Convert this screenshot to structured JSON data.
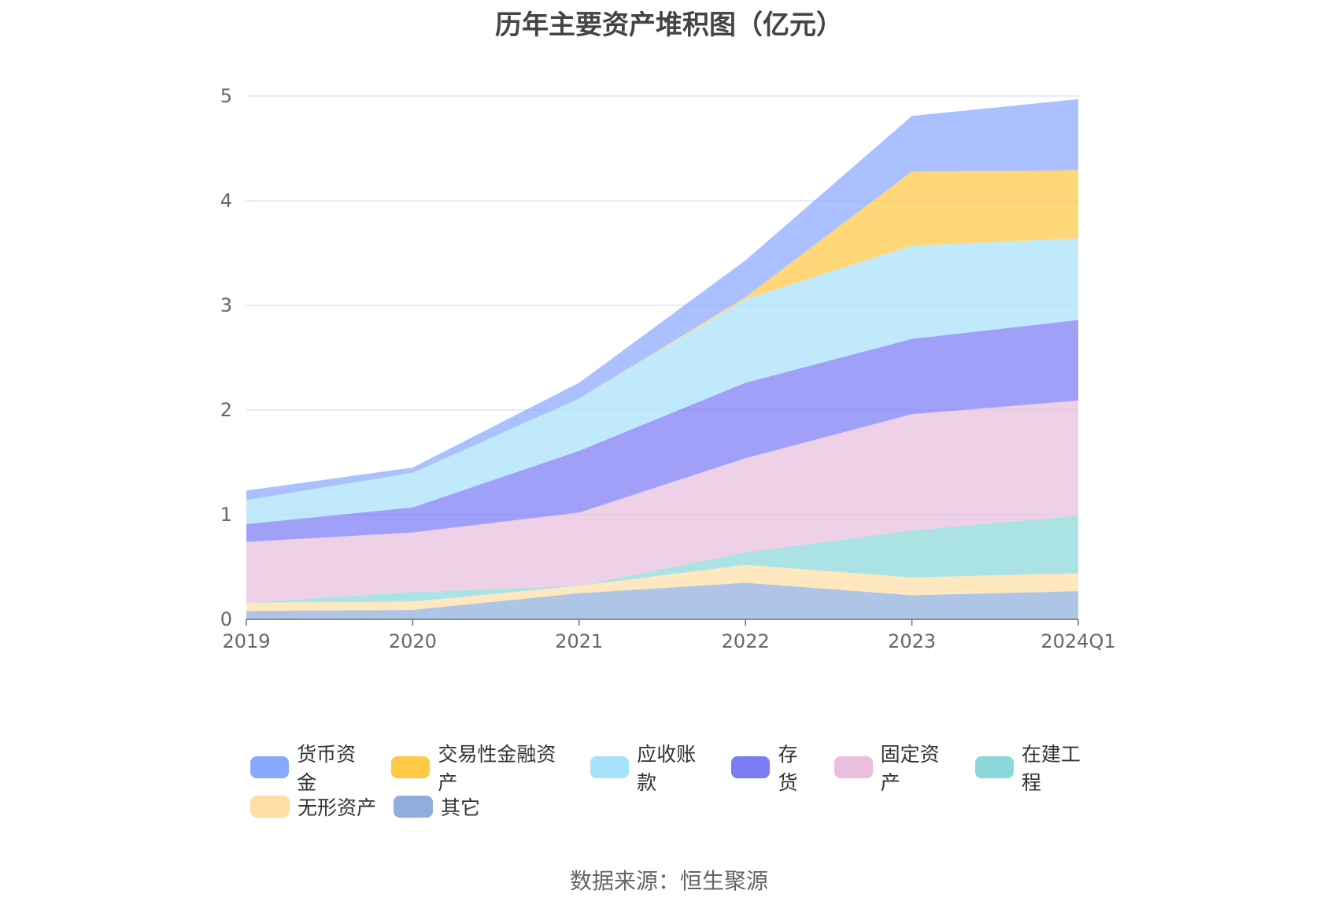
{
  "title": "历年主要资产堆积图（亿元）",
  "source": "数据来源：恒生聚源",
  "chart_data": {
    "type": "area",
    "stacked": true,
    "title": "历年主要资产堆积图（亿元）",
    "categories": [
      "2019",
      "2020",
      "2021",
      "2022",
      "2023",
      "2024Q1"
    ],
    "ylim": [
      0,
      5
    ],
    "yticks": [
      0,
      1,
      2,
      3,
      4,
      5
    ],
    "grid": true,
    "legend_position": "bottom",
    "series": [
      {
        "name": "其它",
        "color": "#8FAEDD",
        "values": [
          0.08,
          0.09,
          0.25,
          0.35,
          0.23,
          0.27
        ]
      },
      {
        "name": "无形资产",
        "color": "#FFDEA6",
        "values": [
          0.08,
          0.08,
          0.07,
          0.17,
          0.17,
          0.17
        ]
      },
      {
        "name": "在建工程",
        "color": "#8AD8DA",
        "values": [
          0.0,
          0.09,
          0.0,
          0.12,
          0.45,
          0.55
        ]
      },
      {
        "name": "固定资产",
        "color": "#E8BFDC",
        "values": [
          0.58,
          0.57,
          0.7,
          0.9,
          1.11,
          1.1
        ]
      },
      {
        "name": "存货",
        "color": "#7B7CF6",
        "values": [
          0.17,
          0.24,
          0.59,
          0.72,
          0.72,
          0.77
        ]
      },
      {
        "name": "应收账款",
        "color": "#A8E2FA",
        "values": [
          0.23,
          0.33,
          0.5,
          0.8,
          0.89,
          0.78
        ]
      },
      {
        "name": "交易性金融资产",
        "color": "#FFC845",
        "values": [
          0.0,
          0.0,
          0.0,
          0.02,
          0.71,
          0.65
        ]
      },
      {
        "name": "货币资金",
        "color": "#8BA8FF",
        "values": [
          0.09,
          0.05,
          0.15,
          0.35,
          0.53,
          0.68
        ]
      }
    ]
  },
  "legend": {
    "rows": [
      [
        {
          "label": "货币资金",
          "color": "#8BA8FF"
        },
        {
          "label": "交易性金融资产",
          "color": "#FFC845"
        },
        {
          "label": "应收账款",
          "color": "#A8E2FA"
        },
        {
          "label": "存货",
          "color": "#7B7CF6"
        },
        {
          "label": "固定资产",
          "color": "#E8BFDC"
        },
        {
          "label": "在建工程",
          "color": "#8AD8DA"
        }
      ],
      [
        {
          "label": "无形资产",
          "color": "#FFDEA6"
        },
        {
          "label": "其它",
          "color": "#8FAEDD"
        }
      ]
    ]
  }
}
